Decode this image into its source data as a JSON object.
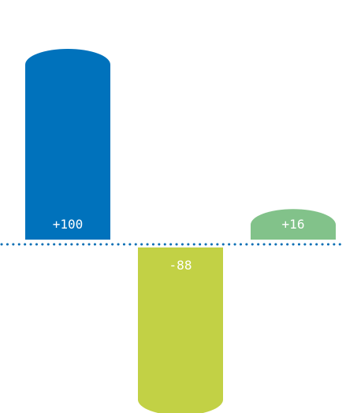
{
  "chart_data": {
    "type": "bar",
    "title": "",
    "xlabel": "",
    "ylabel": "",
    "baseline": "dotted",
    "ylim": [
      -100,
      100
    ],
    "bars": [
      {
        "value": 100,
        "label": "+100",
        "color": "#0072bc"
      },
      {
        "value": -88,
        "label": "-88",
        "color": "#c2d145"
      },
      {
        "value": 16,
        "label": "+16",
        "color": "#82c28a"
      }
    ],
    "baseline_color": "#0a6fb5"
  }
}
